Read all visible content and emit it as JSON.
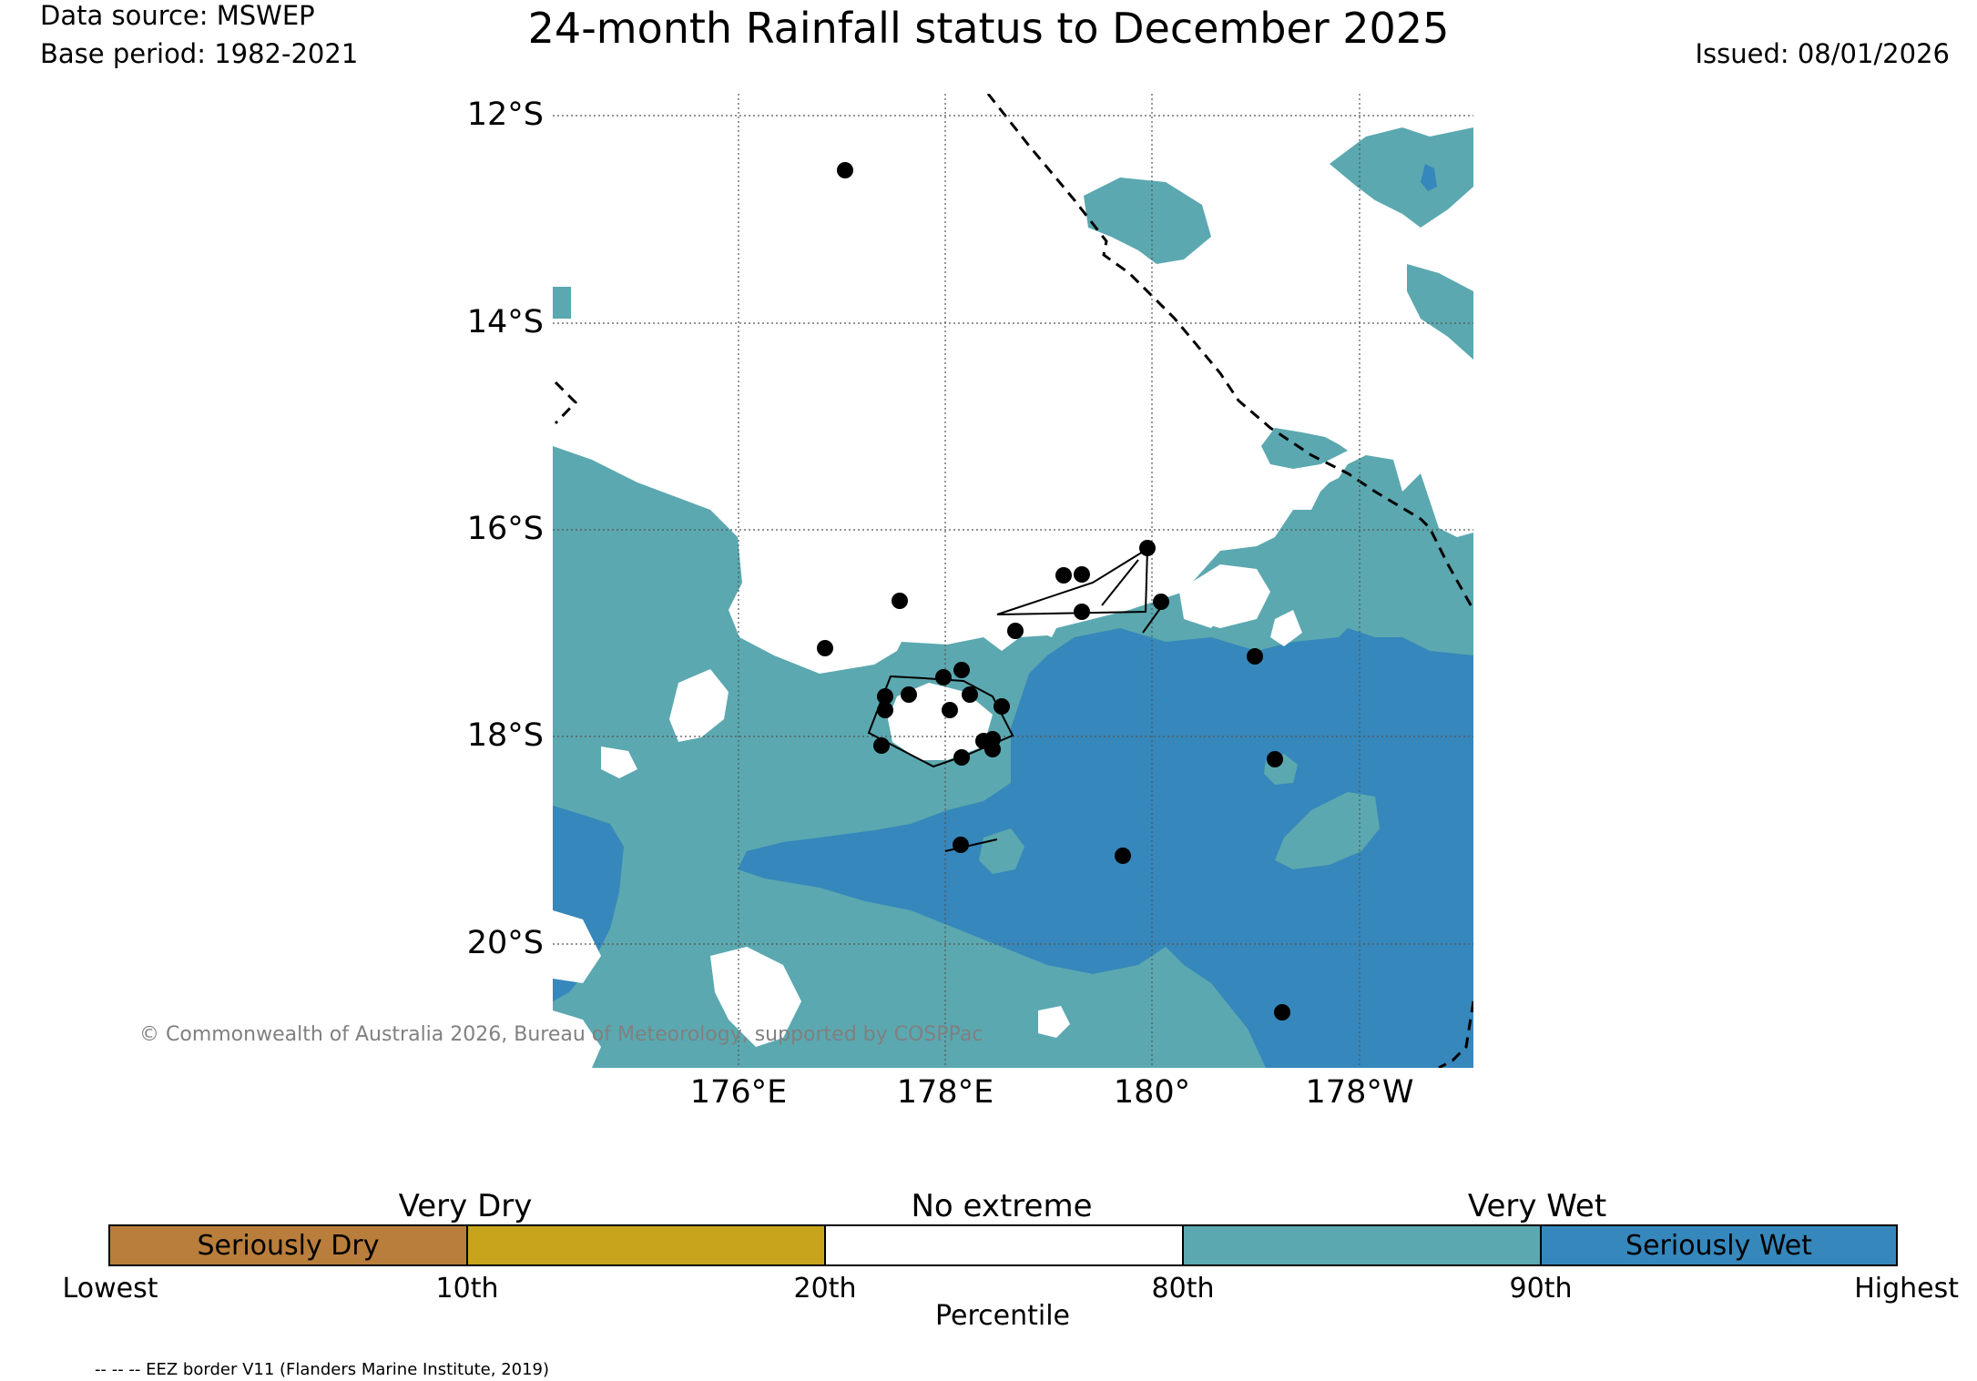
{
  "header": {
    "data_source": "Data source: MSWEP",
    "base_period": "Base period: 1982-2021",
    "title": "24-month Rainfall status to December 2025",
    "issued": "Issued: 08/01/2026"
  },
  "map": {
    "lat_labels": [
      "12°S",
      "14°S",
      "16°S",
      "18°S",
      "20°S"
    ],
    "lon_labels": [
      "176°E",
      "178°E",
      "180°",
      "178°W"
    ],
    "copyright": "© Commonwealth of Australia 2026, Bureau of Meteorology, supported by COSPPac",
    "colors": {
      "very_wet": "#5ba8b0",
      "seriously_wet": "#3687bb",
      "ocean": "#ffffff"
    }
  },
  "legend": {
    "groups": [
      "Very Dry",
      "No extreme",
      "Very Wet"
    ],
    "categories": [
      {
        "label": "Seriously Dry",
        "color": "#b97e3b"
      },
      {
        "label": "",
        "color": "#c7a41c"
      },
      {
        "label": "",
        "color": "#ffffff"
      },
      {
        "label": "",
        "color": "#5ba8b0"
      },
      {
        "label": "Seriously Wet",
        "color": "#3687bb"
      }
    ],
    "percentiles": [
      "Lowest",
      "10th",
      "20th",
      "80th",
      "90th",
      "Highest"
    ],
    "axis_label": "Percentile"
  },
  "footnote": "-- -- -- EEZ border V11 (Flanders Marine Institute, 2019)"
}
